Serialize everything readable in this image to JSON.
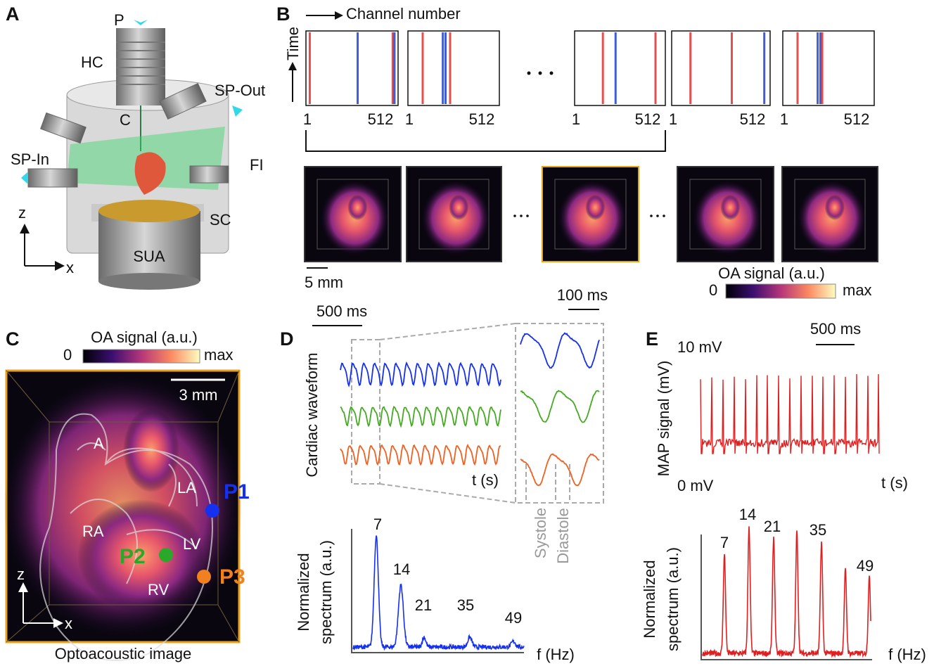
{
  "panel_a": {
    "label": "A",
    "parts": [
      "P",
      "HC",
      "C",
      "SP-Out",
      "SP-In",
      "FI",
      "SC",
      "SUA"
    ],
    "axes": [
      "z",
      "x"
    ]
  },
  "panel_b": {
    "label": "B",
    "x_axis": "Channel number",
    "y_axis": "Time",
    "channel_ticks": [
      1,
      512
    ],
    "scale_bar": "5 mm",
    "colorbar": {
      "title": "OA signal (a.u.)",
      "min": "0",
      "max": "max"
    }
  },
  "panel_c": {
    "label": "C",
    "colorbar": {
      "title": "OA signal (a.u.)",
      "min": "0",
      "max": "max"
    },
    "scale_bar": "3 mm",
    "regions": [
      "A",
      "LA",
      "RA",
      "LV",
      "RV"
    ],
    "points": [
      "P1",
      "P2",
      "P3"
    ],
    "axes": [
      "z",
      "x"
    ],
    "caption": "Optoacoustic image"
  },
  "panel_d": {
    "label": "D",
    "scale_bars": [
      "500 ms",
      "100 ms"
    ],
    "y_axis": "Cardiac waveform",
    "time_axis": "t (s)",
    "phases": [
      "Systole",
      "Diastole"
    ],
    "spectrum": {
      "y_axis": [
        "Normalized",
        "spectrum (a.u.)"
      ],
      "x_axis": "f (Hz)",
      "peaks": [
        7,
        14,
        21,
        35,
        49
      ]
    }
  },
  "panel_e": {
    "label": "E",
    "scale_bar": "500 ms",
    "y_axis": "MAP signal (mV)",
    "y_max": "10 mV",
    "y_min": "0 mV",
    "time_axis": "t (s)",
    "spectrum": {
      "y_axis": [
        "Normalized",
        "spectrum (a.u.)"
      ],
      "x_axis": "f (Hz)",
      "peaks": [
        7,
        14,
        21,
        35,
        49
      ]
    }
  }
}
